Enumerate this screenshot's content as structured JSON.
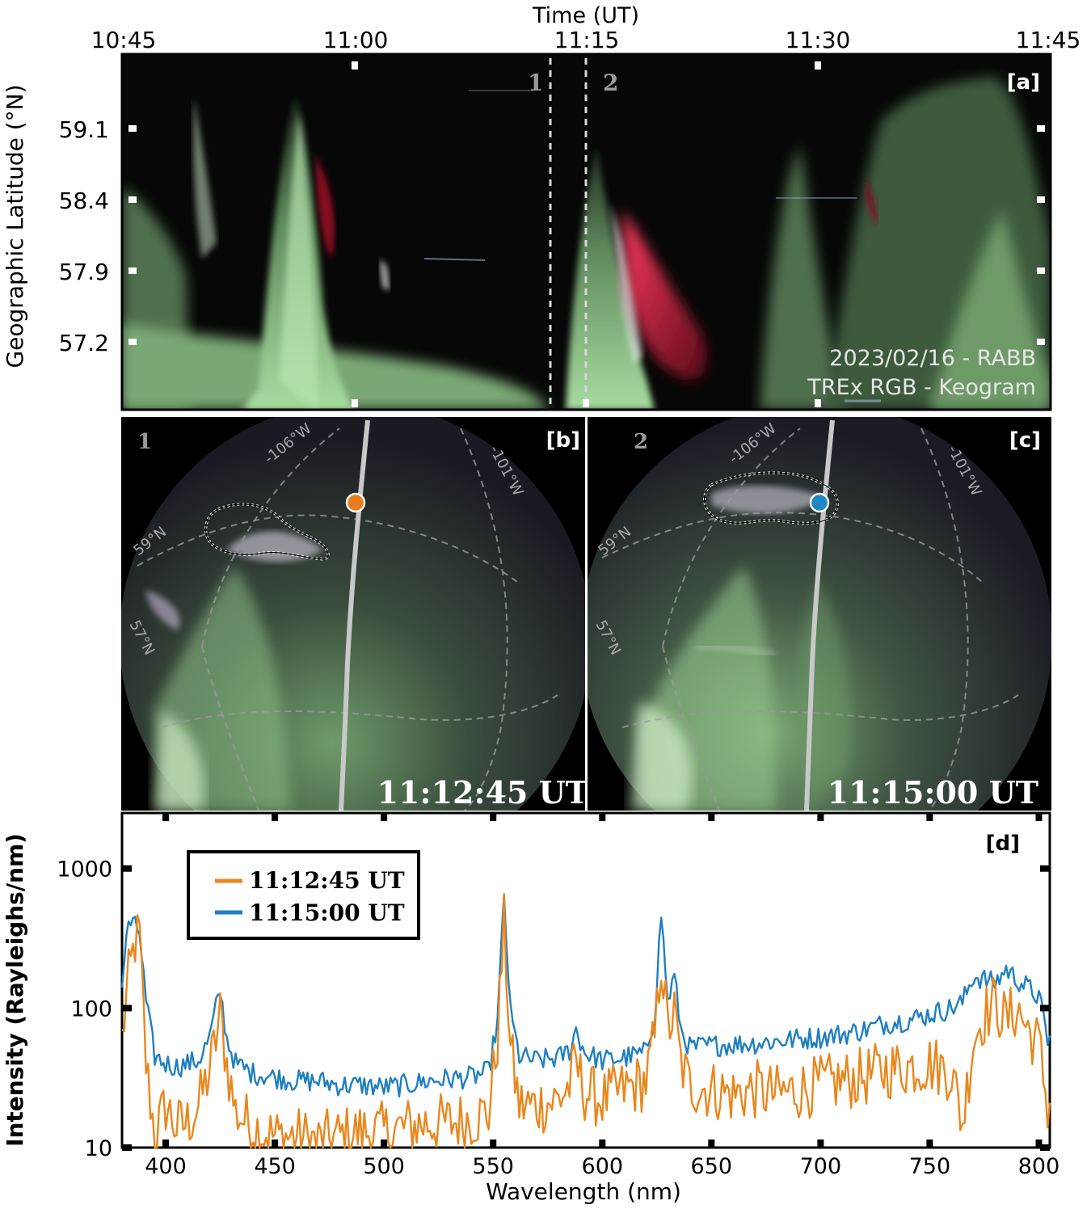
{
  "keogram": {
    "time_axis_title": "Time (UT)",
    "time_ticks": [
      "10:45",
      "11:00",
      "11:15",
      "11:30",
      "11:45"
    ],
    "lat_axis_title": "Geographic Latitude (°N)",
    "lat_ticks": [
      "59.1",
      "58.4",
      "57.9",
      "57.2"
    ],
    "panel_label": "[a]",
    "marker_1": "1",
    "marker_2": "2",
    "caption_line1": "2023/02/16 - RABB",
    "caption_line2": "TREx RGB - Keogram",
    "colors": {
      "green_aurora": "#9fd39a",
      "red_aurora": "#e0123a",
      "background": "#050605"
    }
  },
  "allsky_b": {
    "number": "1",
    "panel_label": "[b]",
    "timestamp": "11:12:45 UT",
    "grid_labels": [
      "-106°W",
      "-101°W",
      "59°N",
      "57°N"
    ],
    "point_color": "#e87d1e"
  },
  "allsky_c": {
    "number": "2",
    "panel_label": "[c]",
    "timestamp": "11:15:00 UT",
    "grid_labels": [
      "-106°W",
      "-101°W",
      "59°N",
      "57°N"
    ],
    "point_color": "#1f87c4"
  },
  "chart_data": {
    "type": "line",
    "panel_label": "[d]",
    "xlabel": "Wavelength (nm)",
    "ylabel": "Intensity (Rayleighs/nm)",
    "xlim": [
      380,
      805
    ],
    "ylim": [
      10,
      2500
    ],
    "yscale": "log",
    "x_ticks": [
      "400",
      "450",
      "500",
      "550",
      "600",
      "650",
      "700",
      "750",
      "800"
    ],
    "y_ticks": [
      "1000",
      "100",
      "10"
    ],
    "legend_position": "top-left",
    "series": [
      {
        "name": "11:12:45 UT",
        "color": "#e8871e",
        "x": [
          380,
          383,
          386,
          388,
          391,
          395,
          400,
          405,
          410,
          415,
          420,
          423,
          425,
          428,
          432,
          440,
          450,
          460,
          470,
          480,
          490,
          500,
          510,
          520,
          530,
          540,
          548,
          552,
          555,
          558,
          562,
          570,
          580,
          585,
          588,
          592,
          600,
          610,
          620,
          624,
          627,
          630,
          633,
          636,
          640,
          650,
          660,
          670,
          680,
          690,
          700,
          710,
          720,
          730,
          740,
          750,
          760,
          765,
          770,
          775,
          780,
          785,
          790,
          795,
          800,
          804
        ],
        "values": [
          60,
          160,
          300,
          330,
          40,
          12,
          20,
          14,
          15,
          20,
          35,
          60,
          90,
          40,
          18,
          14,
          12,
          12,
          11,
          12,
          13,
          13,
          14,
          15,
          15,
          16,
          18,
          60,
          400,
          50,
          20,
          20,
          22,
          28,
          40,
          25,
          22,
          26,
          30,
          60,
          230,
          70,
          90,
          40,
          28,
          26,
          24,
          26,
          24,
          26,
          28,
          30,
          32,
          36,
          38,
          40,
          35,
          15,
          60,
          90,
          110,
          80,
          100,
          70,
          55,
          20
        ]
      },
      {
        "name": "11:15:00 UT",
        "color": "#1f7fc0",
        "x": [
          380,
          383,
          386,
          388,
          391,
          395,
          400,
          405,
          410,
          415,
          420,
          423,
          425,
          428,
          432,
          440,
          450,
          460,
          470,
          480,
          490,
          500,
          510,
          520,
          530,
          540,
          548,
          552,
          555,
          558,
          562,
          570,
          580,
          585,
          588,
          592,
          600,
          610,
          620,
          624,
          627,
          630,
          633,
          636,
          640,
          650,
          660,
          670,
          680,
          690,
          700,
          710,
          720,
          730,
          740,
          750,
          760,
          765,
          770,
          775,
          780,
          785,
          790,
          795,
          800,
          804
        ],
        "values": [
          150,
          420,
          380,
          350,
          110,
          45,
          40,
          38,
          40,
          42,
          60,
          100,
          130,
          60,
          40,
          34,
          32,
          30,
          30,
          28,
          28,
          27,
          28,
          30,
          31,
          32,
          35,
          80,
          620,
          90,
          45,
          42,
          44,
          50,
          70,
          48,
          42,
          44,
          48,
          90,
          480,
          110,
          170,
          70,
          52,
          54,
          55,
          56,
          58,
          60,
          62,
          65,
          70,
          78,
          82,
          90,
          100,
          110,
          170,
          160,
          150,
          190,
          160,
          140,
          120,
          60
        ]
      }
    ]
  }
}
